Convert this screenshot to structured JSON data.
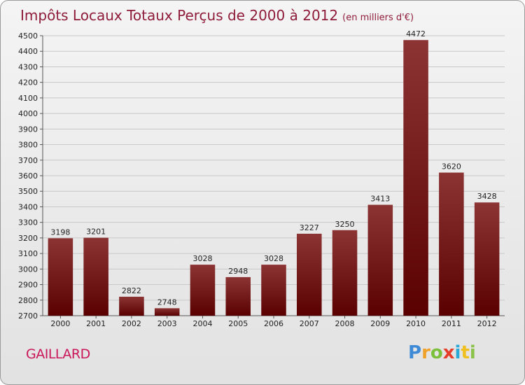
{
  "title": "Impôts Locaux Totaux Perçus de 2000 à 2012",
  "unit_note": "(en milliers d'€)",
  "commune": "GAILLARD",
  "logo_text": "Proxiti",
  "colors": {
    "bar_top": "#8c3434",
    "bar_bottom": "#5a0000",
    "title": "#8e1c3a",
    "commune": "#c9175a"
  },
  "chart_data": {
    "type": "bar",
    "title": "Impôts Locaux Totaux Perçus de 2000 à 2012",
    "subtitle": "(en milliers d'€)",
    "xlabel": "",
    "ylabel": "",
    "categories": [
      "2000",
      "2001",
      "2002",
      "2003",
      "2004",
      "2005",
      "2006",
      "2007",
      "2008",
      "2009",
      "2010",
      "2011",
      "2012"
    ],
    "values": [
      3198,
      3201,
      2822,
      2748,
      3028,
      2948,
      3028,
      3227,
      3250,
      3413,
      4472,
      3620,
      3428
    ],
    "ylim": [
      2700,
      4500
    ],
    "ytick_step": 100,
    "grid": true,
    "data_labels": true
  }
}
